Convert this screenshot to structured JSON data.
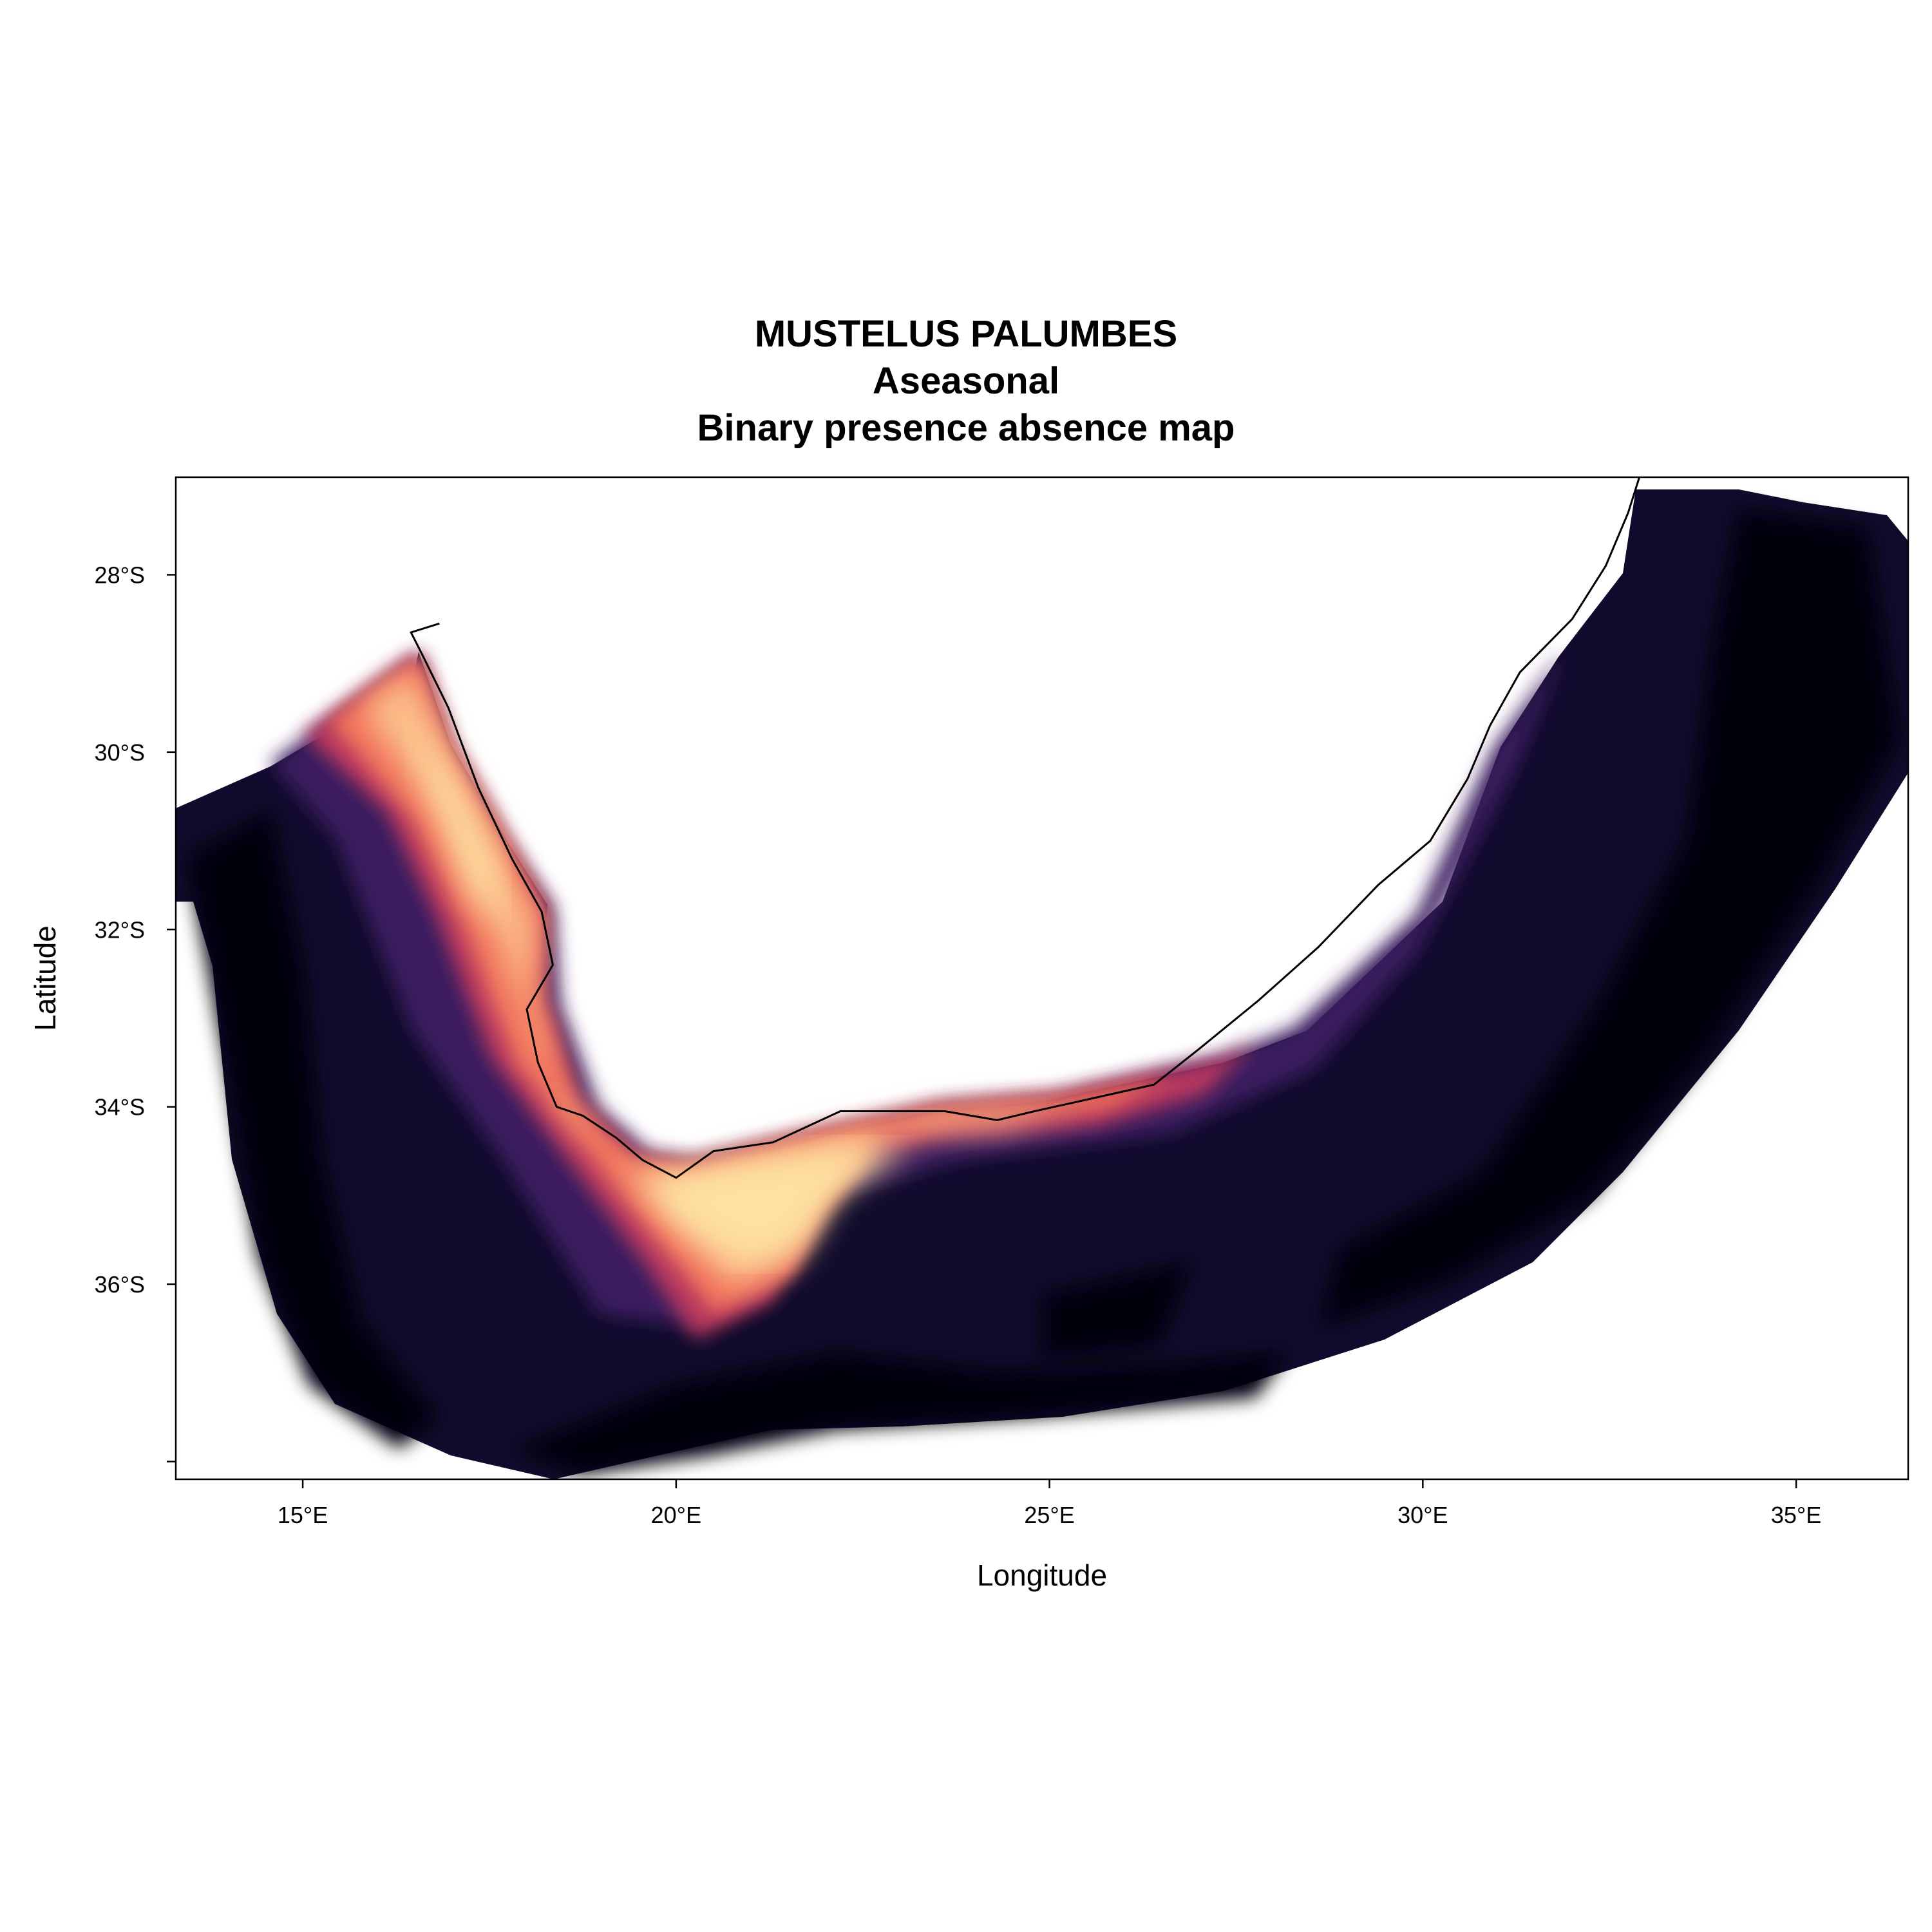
{
  "title": {
    "line1": "MUSTELUS PALUMBES",
    "line2": "Aseasonal",
    "line3": "Binary presence absence map"
  },
  "axes": {
    "xlabel": "Longitude",
    "ylabel": "Latitude",
    "xlim": [
      13.3,
      36.5
    ],
    "ylim": [
      -38.2,
      -26.9
    ],
    "x_ticks": [
      {
        "value": 15,
        "label": "15°E"
      },
      {
        "value": 20,
        "label": "20°E"
      },
      {
        "value": 25,
        "label": "25°E"
      },
      {
        "value": 30,
        "label": "30°E"
      },
      {
        "value": 35,
        "label": "35°E"
      }
    ],
    "y_ticks": [
      {
        "value": -28,
        "label": "28°S"
      },
      {
        "value": -30,
        "label": "30°S"
      },
      {
        "value": -32,
        "label": "32°S"
      },
      {
        "value": -34,
        "label": "34°S"
      },
      {
        "value": -36,
        "label": "36°S"
      },
      {
        "value": -38,
        "label": ""
      }
    ]
  },
  "colors": {
    "deep_ocean": "#05030f",
    "offshore": "#100b2d",
    "shelf_edge": "#3b1c5e",
    "mid_shelf": "#b7375e",
    "inner_shelf": "#f06f5a",
    "near_shore": "#fcc08a",
    "bank": "#fde2a2",
    "coastline": "#000000"
  },
  "map_data": {
    "type": "raster",
    "coastline": [
      [
        16.83,
        -28.55
      ],
      [
        16.45,
        -28.65
      ],
      [
        16.6,
        -28.9
      ],
      [
        16.95,
        -29.5
      ],
      [
        17.35,
        -30.4
      ],
      [
        17.8,
        -31.2
      ],
      [
        18.2,
        -31.8
      ],
      [
        18.35,
        -32.4
      ],
      [
        18.0,
        -32.9
      ],
      [
        18.15,
        -33.5
      ],
      [
        18.4,
        -34.0
      ],
      [
        18.75,
        -34.1
      ],
      [
        19.2,
        -34.35
      ],
      [
        19.55,
        -34.6
      ],
      [
        20.0,
        -34.8
      ],
      [
        20.5,
        -34.5
      ],
      [
        21.3,
        -34.4
      ],
      [
        22.2,
        -34.05
      ],
      [
        23.0,
        -34.05
      ],
      [
        23.6,
        -34.05
      ],
      [
        24.3,
        -34.15
      ],
      [
        24.8,
        -34.05
      ],
      [
        25.6,
        -33.9
      ],
      [
        26.4,
        -33.75
      ],
      [
        27.0,
        -33.35
      ],
      [
        27.8,
        -32.8
      ],
      [
        28.6,
        -32.2
      ],
      [
        29.4,
        -31.5
      ],
      [
        30.1,
        -31.0
      ],
      [
        30.6,
        -30.3
      ],
      [
        30.9,
        -29.7
      ],
      [
        31.3,
        -29.1
      ],
      [
        32.0,
        -28.5
      ],
      [
        32.45,
        -27.9
      ],
      [
        32.75,
        -27.3
      ],
      [
        32.9,
        -26.9
      ]
    ]
  }
}
